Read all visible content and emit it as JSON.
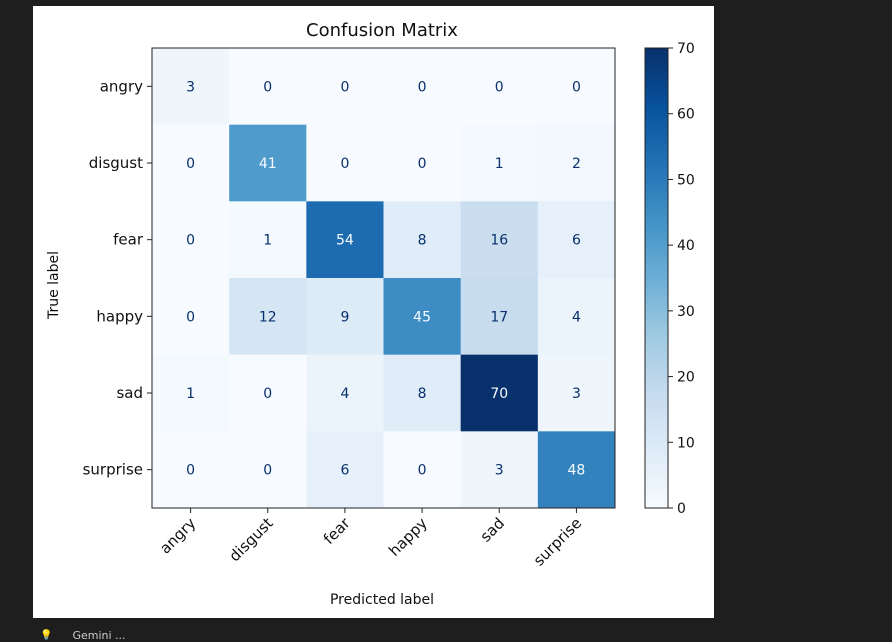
{
  "chart_data": {
    "type": "heatmap",
    "title": "Confusion Matrix",
    "xlabel": "Predicted label",
    "ylabel": "True label",
    "x_categories": [
      "angry",
      "disgust",
      "fear",
      "happy",
      "sad",
      "surprise"
    ],
    "y_categories": [
      "angry",
      "disgust",
      "fear",
      "happy",
      "sad",
      "surprise"
    ],
    "values": [
      [
        3,
        0,
        0,
        0,
        0,
        0
      ],
      [
        0,
        41,
        0,
        0,
        1,
        2
      ],
      [
        0,
        1,
        54,
        8,
        16,
        6
      ],
      [
        0,
        12,
        9,
        45,
        17,
        4
      ],
      [
        1,
        0,
        4,
        8,
        70,
        3
      ],
      [
        0,
        0,
        6,
        0,
        3,
        48
      ]
    ],
    "colorscale": "Blues",
    "vmin": 0,
    "vmax": 70,
    "colorbar_ticks": [
      0,
      10,
      20,
      30,
      40,
      50,
      60,
      70
    ],
    "grid": false
  },
  "footer": {
    "icon": "lightbulb-icon",
    "text": "Gemini ..."
  }
}
